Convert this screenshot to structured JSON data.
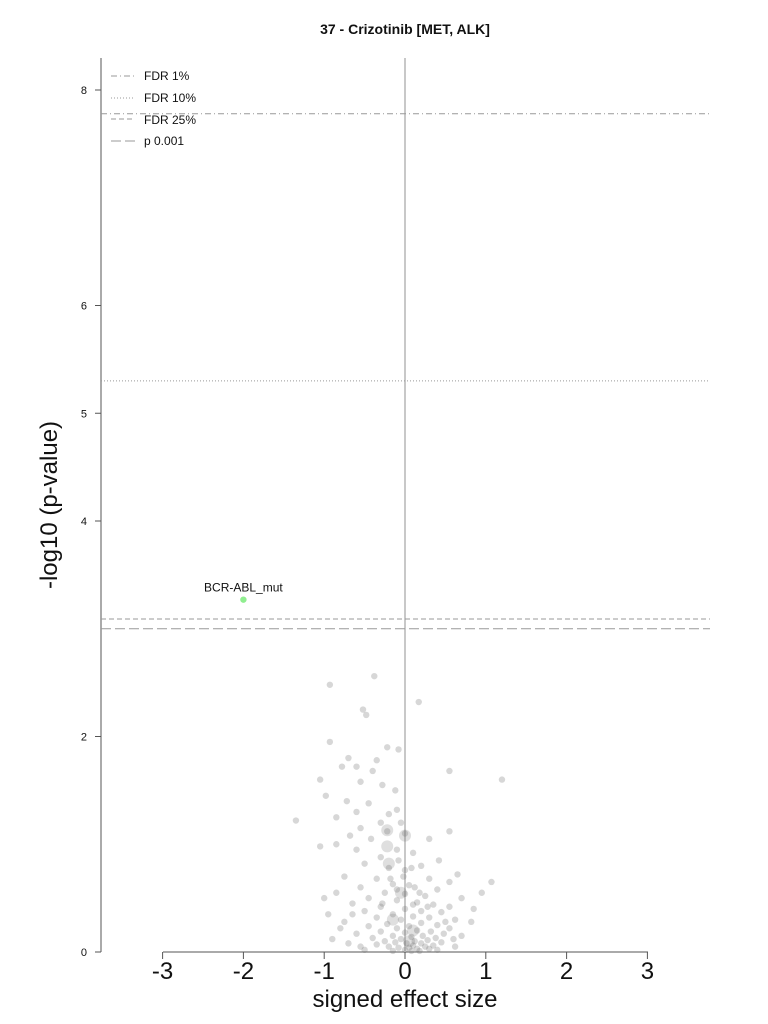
{
  "chart_data": {
    "type": "scatter",
    "title": "37 - Crizotinib [MET, ALK]",
    "xlabel": "signed effect size",
    "ylabel": "-log10 (p-value)",
    "xlim": [
      -3.7,
      3.8
    ],
    "ylim": [
      0,
      8.3
    ],
    "x_ticks": [
      -3,
      -2,
      -1,
      0,
      1,
      2,
      3
    ],
    "x_tick_labels": [
      "-3",
      "-2",
      "-1",
      "0",
      "1",
      "2",
      "3"
    ],
    "y_ticks": [
      0,
      2,
      4,
      5,
      6,
      8
    ],
    "y_tick_labels": [
      "0",
      "2",
      "4",
      "5",
      "6",
      "8"
    ],
    "grid": false,
    "legend_position": "top-left",
    "thresholds": [
      {
        "name": "FDR 1%",
        "y": 7.78,
        "style": "dashdot"
      },
      {
        "name": "FDR 10%",
        "y": 5.3,
        "style": "dotted"
      },
      {
        "name": "FDR 25%",
        "y": 3.09,
        "style": "dashed"
      },
      {
        "name": "p 0.001",
        "y": 3.0,
        "style": "longdash"
      }
    ],
    "highlight": {
      "label": "BCR-ABL_mut",
      "x": -2.0,
      "y": 3.27,
      "color": "#90ee90"
    },
    "points": [
      [
        -0.93,
        2.48
      ],
      [
        -0.38,
        2.56
      ],
      [
        0.17,
        2.32
      ],
      [
        -0.52,
        2.25
      ],
      [
        -0.48,
        2.2
      ],
      [
        -0.93,
        1.95
      ],
      [
        -0.22,
        1.9
      ],
      [
        -0.08,
        1.88
      ],
      [
        -0.7,
        1.8
      ],
      [
        -0.35,
        1.78
      ],
      [
        -0.6,
        1.72
      ],
      [
        -0.78,
        1.72
      ],
      [
        -0.4,
        1.68
      ],
      [
        0.55,
        1.68
      ],
      [
        1.2,
        1.6
      ],
      [
        -1.05,
        1.6
      ],
      [
        -0.55,
        1.58
      ],
      [
        -0.28,
        1.55
      ],
      [
        -0.12,
        1.5
      ],
      [
        -0.98,
        1.45
      ],
      [
        -0.72,
        1.4
      ],
      [
        -0.45,
        1.38
      ],
      [
        -0.1,
        1.32
      ],
      [
        -0.6,
        1.3
      ],
      [
        -0.2,
        1.28
      ],
      [
        -1.35,
        1.22
      ],
      [
        -0.85,
        1.25
      ],
      [
        -0.05,
        1.2
      ],
      [
        -0.3,
        1.2
      ],
      [
        -0.55,
        1.15
      ],
      [
        -0.22,
        1.12
      ],
      [
        0.0,
        1.1
      ],
      [
        -0.68,
        1.08
      ],
      [
        -0.42,
        1.05
      ],
      [
        0.3,
        1.05
      ],
      [
        0.55,
        1.12
      ],
      [
        -1.05,
        0.98
      ],
      [
        -0.85,
        1.0
      ],
      [
        -0.6,
        0.95
      ],
      [
        -0.1,
        0.95
      ],
      [
        0.1,
        0.92
      ],
      [
        -0.3,
        0.88
      ],
      [
        0.42,
        0.85
      ],
      [
        -0.5,
        0.82
      ],
      [
        0.2,
        0.8
      ],
      [
        -0.2,
        0.78
      ],
      [
        0.0,
        0.76
      ],
      [
        0.65,
        0.72
      ],
      [
        -0.75,
        0.7
      ],
      [
        -0.35,
        0.68
      ],
      [
        0.3,
        0.68
      ],
      [
        0.55,
        0.65
      ],
      [
        -0.15,
        0.63
      ],
      [
        0.12,
        0.6
      ],
      [
        1.07,
        0.65
      ],
      [
        -0.55,
        0.6
      ],
      [
        0.4,
        0.58
      ],
      [
        -0.85,
        0.55
      ],
      [
        -0.25,
        0.55
      ],
      [
        0.0,
        0.54
      ],
      [
        0.25,
        0.52
      ],
      [
        0.7,
        0.5
      ],
      [
        -0.45,
        0.5
      ],
      [
        0.95,
        0.55
      ],
      [
        -0.1,
        0.48
      ],
      [
        0.15,
        0.46
      ],
      [
        -0.65,
        0.45
      ],
      [
        0.35,
        0.44
      ],
      [
        0.55,
        0.42
      ],
      [
        -0.3,
        0.42
      ],
      [
        0.0,
        0.4
      ],
      [
        0.2,
        0.38
      ],
      [
        -0.5,
        0.38
      ],
      [
        0.45,
        0.37
      ],
      [
        -0.95,
        0.35
      ],
      [
        -0.15,
        0.35
      ],
      [
        0.1,
        0.33
      ],
      [
        0.3,
        0.32
      ],
      [
        -0.35,
        0.32
      ],
      [
        0.62,
        0.3
      ],
      [
        -0.05,
        0.3
      ],
      [
        0.82,
        0.28
      ],
      [
        -0.75,
        0.28
      ],
      [
        0.2,
        0.27
      ],
      [
        -0.22,
        0.26
      ],
      [
        0.4,
        0.25
      ],
      [
        0.05,
        0.24
      ],
      [
        -0.45,
        0.24
      ],
      [
        0.55,
        0.22
      ],
      [
        -0.1,
        0.22
      ],
      [
        0.15,
        0.2
      ],
      [
        0.32,
        0.19
      ],
      [
        -0.3,
        0.19
      ],
      [
        0.0,
        0.18
      ],
      [
        0.48,
        0.17
      ],
      [
        -0.6,
        0.17
      ],
      [
        0.22,
        0.15
      ],
      [
        -0.15,
        0.15
      ],
      [
        0.08,
        0.14
      ],
      [
        0.38,
        0.13
      ],
      [
        -0.4,
        0.13
      ],
      [
        0.6,
        0.12
      ],
      [
        -0.05,
        0.12
      ],
      [
        0.28,
        0.11
      ],
      [
        -0.25,
        0.1
      ],
      [
        0.12,
        0.1
      ],
      [
        0.45,
        0.09
      ],
      [
        -0.12,
        0.09
      ],
      [
        0.2,
        0.08
      ],
      [
        0.02,
        0.08
      ],
      [
        -0.35,
        0.07
      ],
      [
        0.35,
        0.06
      ],
      [
        0.1,
        0.06
      ],
      [
        -0.2,
        0.05
      ],
      [
        0.25,
        0.05
      ],
      [
        0.05,
        0.04
      ],
      [
        -0.08,
        0.04
      ],
      [
        0.15,
        0.03
      ],
      [
        0.3,
        0.03
      ],
      [
        0.0,
        0.02
      ],
      [
        -0.5,
        0.02
      ],
      [
        0.4,
        0.02
      ],
      [
        0.18,
        0.01
      ],
      [
        -0.15,
        0.01
      ],
      [
        0.08,
        0.01
      ],
      [
        -0.7,
        0.08
      ],
      [
        -0.9,
        0.12
      ],
      [
        0.7,
        0.15
      ],
      [
        -0.8,
        0.22
      ],
      [
        0.85,
        0.4
      ],
      [
        -1.0,
        0.5
      ],
      [
        -0.65,
        0.35
      ],
      [
        0.5,
        0.28
      ],
      [
        0.62,
        0.05
      ],
      [
        -0.55,
        0.05
      ],
      [
        0.05,
        0.62
      ],
      [
        -0.02,
        0.7
      ],
      [
        0.1,
        0.44
      ],
      [
        -0.1,
        0.58
      ],
      [
        0.28,
        0.42
      ],
      [
        -0.28,
        0.45
      ],
      [
        0.18,
        0.55
      ],
      [
        -0.18,
        0.68
      ],
      [
        0.08,
        0.78
      ],
      [
        -0.08,
        0.85
      ]
    ],
    "large_points": [
      [
        -0.22,
        1.13
      ],
      [
        -0.22,
        0.98
      ],
      [
        -0.2,
        0.82
      ],
      [
        0.0,
        1.08
      ],
      [
        -0.05,
        0.55
      ],
      [
        0.1,
        0.2
      ],
      [
        0.05,
        0.1
      ],
      [
        -0.15,
        0.3
      ]
    ]
  }
}
